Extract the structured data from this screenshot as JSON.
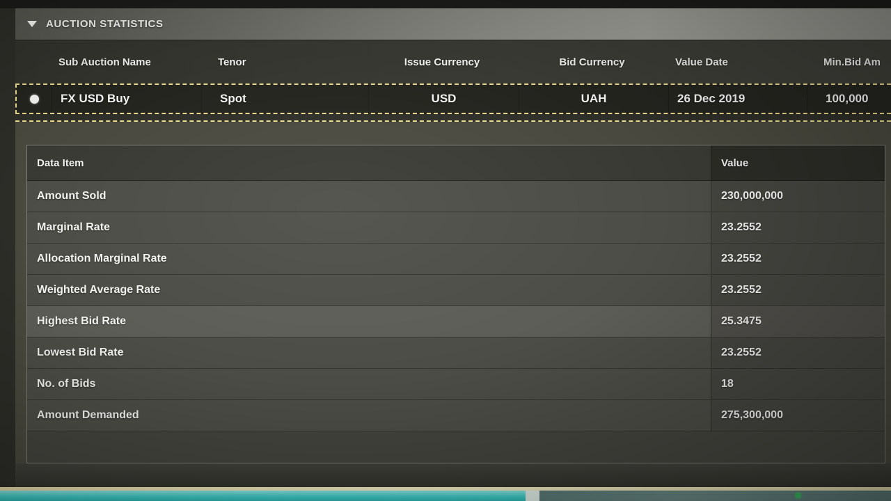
{
  "window": {
    "title": "AUCTION STATISTICS",
    "collapse_icon": "triangle-down"
  },
  "auction_table": {
    "columns": {
      "sub_auction_name": "Sub Auction Name",
      "tenor": "Tenor",
      "issue_currency": "Issue Currency",
      "bid_currency": "Bid Currency",
      "value_date": "Value Date",
      "min_bid_amount": "Min.Bid Am"
    },
    "selected_row": {
      "selected": true,
      "sub_auction_name": "FX USD Buy",
      "tenor": "Spot",
      "issue_currency": "USD",
      "bid_currency": "UAH",
      "value_date": "26 Dec 2019",
      "min_bid_amount": "100,000"
    }
  },
  "stats_table": {
    "header": {
      "item": "Data Item",
      "value": "Value"
    },
    "rows": [
      {
        "item": "Amount Sold",
        "value": "230,000,000"
      },
      {
        "item": "Marginal Rate",
        "value": "23.2552"
      },
      {
        "item": "Allocation Marginal Rate",
        "value": "23.2552"
      },
      {
        "item": "Weighted Average Rate",
        "value": "23.2552"
      },
      {
        "item": "Highest Bid Rate",
        "value": "25.3475"
      },
      {
        "item": "Lowest Bid Rate",
        "value": "23.2552"
      },
      {
        "item": "No. of Bids",
        "value": "18"
      },
      {
        "item": "Amount Demanded",
        "value": "275,300,000"
      }
    ]
  },
  "colors": {
    "selection_border": "#ead98f",
    "title_bar_light": "#9b9b95",
    "row_background": "#24241f",
    "teal_strip": "#3ecfca",
    "green_indicator": "#3cbb63"
  }
}
